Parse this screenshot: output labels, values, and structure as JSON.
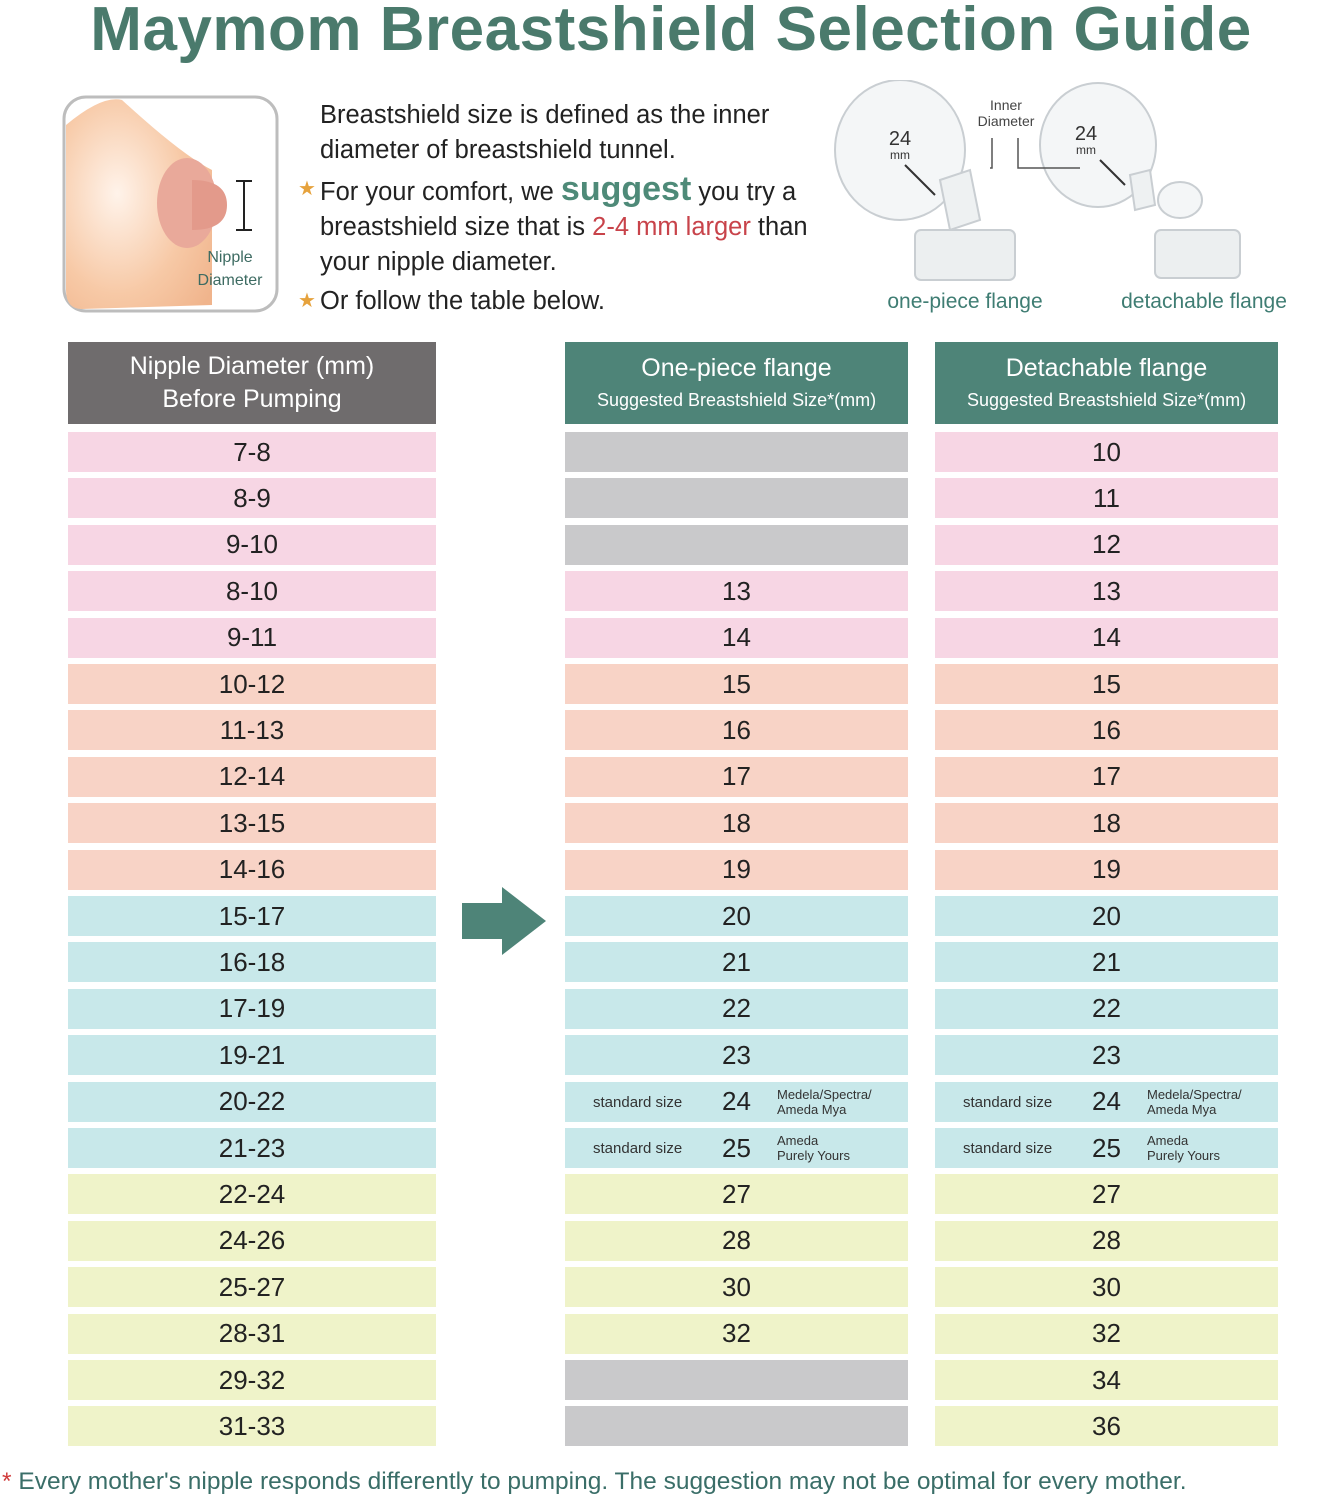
{
  "title": "Maymom Breastshield Selection Guide",
  "nipple_figure": {
    "label_lines": [
      "Nipple",
      "Diameter"
    ]
  },
  "intro": {
    "definition": "Breastshield size is defined as the inner diameter of breastshield tunnel.",
    "bullet_1": {
      "before": "For your comfort, we ",
      "emphasis": "suggest",
      "middle": " you try a breastshield size that is ",
      "highlight": "2-4 mm larger",
      "after": " than your nipple diameter."
    },
    "bullet_2": "Or follow the table below."
  },
  "flange_figure": {
    "inner_diameter_lines": [
      "Inner",
      "Diameter"
    ],
    "size": "24",
    "unit": "mm",
    "captions": [
      "one-piece flange",
      "detachable flange"
    ]
  },
  "table": {
    "headers": [
      {
        "lines": [
          "Nipple Diameter (mm)",
          "Before Pumping"
        ],
        "color": "#6f6c6d"
      },
      {
        "lines": [
          "One-piece flange",
          "Suggested Breastshield Size*(mm)"
        ],
        "color": "#4e8478"
      },
      {
        "lines": [
          "Detachable flange",
          "Suggested Breastshield Size*(mm)"
        ],
        "color": "#4e8478"
      }
    ],
    "empty_color": "#c9c9cb",
    "rows": [
      {
        "nipple": "7-8",
        "one_piece": null,
        "detachable": 10,
        "color": "#f7d6e4"
      },
      {
        "nipple": "8-9",
        "one_piece": null,
        "detachable": 11,
        "color": "#f7d6e4"
      },
      {
        "nipple": "9-10",
        "one_piece": null,
        "detachable": 12,
        "color": "#f7d6e4"
      },
      {
        "nipple": "8-10",
        "one_piece": 13,
        "detachable": 13,
        "color": "#f7d6e4"
      },
      {
        "nipple": "9-11",
        "one_piece": 14,
        "detachable": 14,
        "color": "#f7d6e4"
      },
      {
        "nipple": "10-12",
        "one_piece": 15,
        "detachable": 15,
        "color": "#f8d3c6"
      },
      {
        "nipple": "11-13",
        "one_piece": 16,
        "detachable": 16,
        "color": "#f8d3c6"
      },
      {
        "nipple": "12-14",
        "one_piece": 17,
        "detachable": 17,
        "color": "#f8d3c6"
      },
      {
        "nipple": "13-15",
        "one_piece": 18,
        "detachable": 18,
        "color": "#f8d3c6"
      },
      {
        "nipple": "14-16",
        "one_piece": 19,
        "detachable": 19,
        "color": "#f8d3c6"
      },
      {
        "nipple": "15-17",
        "one_piece": 20,
        "detachable": 20,
        "color": "#c8e8ea"
      },
      {
        "nipple": "16-18",
        "one_piece": 21,
        "detachable": 21,
        "color": "#c8e8ea"
      },
      {
        "nipple": "17-19",
        "one_piece": 22,
        "detachable": 22,
        "color": "#c8e8ea"
      },
      {
        "nipple": "19-21",
        "one_piece": 23,
        "detachable": 23,
        "color": "#c8e8ea"
      },
      {
        "nipple": "20-22",
        "one_piece": 24,
        "detachable": 24,
        "color": "#c8e8ea",
        "note_left": "standard size",
        "note_right": [
          "Medela/Spectra/",
          "Ameda Mya"
        ]
      },
      {
        "nipple": "21-23",
        "one_piece": 25,
        "detachable": 25,
        "color": "#c8e8ea",
        "note_left": "standard size",
        "note_right": [
          "Ameda",
          "Purely Yours"
        ]
      },
      {
        "nipple": "22-24",
        "one_piece": 27,
        "detachable": 27,
        "color": "#eff3c9"
      },
      {
        "nipple": "24-26",
        "one_piece": 28,
        "detachable": 28,
        "color": "#eff3c9"
      },
      {
        "nipple": "25-27",
        "one_piece": 30,
        "detachable": 30,
        "color": "#eff3c9"
      },
      {
        "nipple": "28-31",
        "one_piece": 32,
        "detachable": 32,
        "color": "#eff3c9"
      },
      {
        "nipple": "29-32",
        "one_piece": null,
        "detachable": 34,
        "color": "#eff3c9"
      },
      {
        "nipple": "31-33",
        "one_piece": null,
        "detachable": 36,
        "color": "#eff3c9"
      }
    ]
  },
  "footnote": {
    "mark": "*",
    "text": "Every mother's nipple responds differently to pumping. The suggestion may not be optimal for every mother."
  }
}
